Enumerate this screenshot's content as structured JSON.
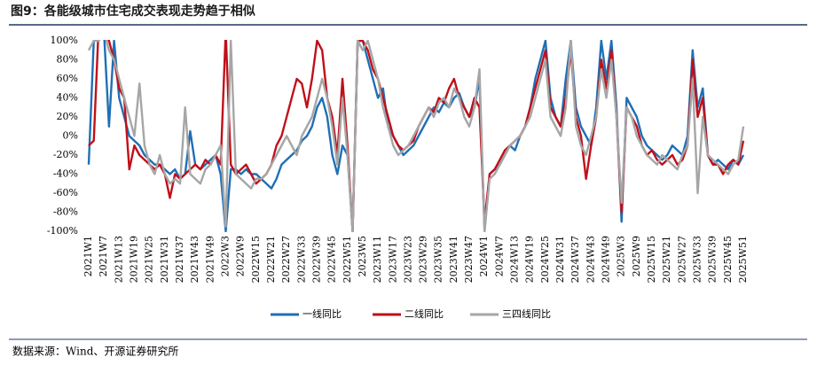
{
  "chart_data": {
    "type": "line",
    "title": "图9：各能级城市住宅成交表现走势趋于相似",
    "source": "数据来源：Wind、开源证券研究所",
    "categories": [
      "2021W1",
      null,
      null,
      "2021W7",
      null,
      null,
      "2021W13",
      null,
      null,
      "2021W19",
      null,
      null,
      "2021W25",
      null,
      null,
      "2021W31",
      null,
      null,
      "2021W37",
      null,
      null,
      "2021W43",
      null,
      null,
      "2021W49",
      null,
      null,
      "2022W3",
      null,
      null,
      "2022W9",
      null,
      null,
      "2022W15",
      null,
      null,
      "2022W21",
      null,
      null,
      "2022W27",
      null,
      null,
      "2022W33",
      null,
      null,
      "2022W39",
      null,
      null,
      "2022W45",
      null,
      null,
      "2022W51",
      null,
      null,
      "2023W5",
      null,
      null,
      "2023W11",
      null,
      null,
      "2023W17",
      null,
      null,
      "2023W23",
      null,
      null,
      "2023W29",
      null,
      null,
      "2023W35",
      null,
      null,
      "2023W41",
      null,
      null,
      "2023W47",
      null,
      null,
      "2024W1",
      null,
      null,
      "2024W7",
      null,
      null,
      "2024W13",
      null,
      null,
      "2024W19",
      null,
      null,
      "2024W25",
      null,
      null,
      "2024W31",
      null,
      null,
      "2024W37",
      null,
      null,
      "2024W43",
      null,
      null,
      "2024W49",
      null,
      null,
      "2025W3",
      null,
      null,
      "2025W9",
      null,
      null,
      "2025W15",
      null,
      null,
      "2025W21",
      null,
      null,
      "2025W27",
      null,
      null,
      "2025W33",
      null,
      null,
      "2025W39",
      null,
      null,
      "2025W45",
      null,
      null,
      "2025W51"
    ],
    "ylim": [
      -100,
      100
    ],
    "yticks": [
      {
        "value": -100,
        "label": "-100%"
      },
      {
        "value": -80,
        "label": "-80%"
      },
      {
        "value": -60,
        "label": "-60%"
      },
      {
        "value": -40,
        "label": "-40%"
      },
      {
        "value": -20,
        "label": "-20%"
      },
      {
        "value": 0,
        "label": "0%"
      },
      {
        "value": 20,
        "label": "20%"
      },
      {
        "value": 40,
        "label": "40%"
      },
      {
        "value": 60,
        "label": "60%"
      },
      {
        "value": 80,
        "label": "80%"
      },
      {
        "value": 100,
        "label": "100%"
      }
    ],
    "grid": false,
    "legend": "bottom",
    "series": [
      {
        "name": "一线同比",
        "color": "#1f6fb5",
        "values": [
          -30,
          100,
          110,
          110,
          10,
          100,
          40,
          20,
          0,
          -5,
          -10,
          -20,
          -25,
          -30,
          -30,
          -35,
          -40,
          -35,
          -45,
          -40,
          5,
          -30,
          -35,
          -30,
          -25,
          -20,
          -40,
          -100,
          -35,
          -35,
          -40,
          -35,
          -40,
          -40,
          -45,
          -50,
          -55,
          -45,
          -30,
          -25,
          -20,
          -15,
          -5,
          0,
          10,
          30,
          40,
          20,
          -20,
          -40,
          -10,
          -20,
          -100,
          100,
          100,
          80,
          60,
          40,
          50,
          10,
          0,
          -10,
          -20,
          -15,
          -10,
          0,
          10,
          20,
          30,
          25,
          35,
          30,
          40,
          45,
          30,
          20,
          30,
          60,
          -100,
          -40,
          -35,
          -30,
          -20,
          -10,
          -15,
          0,
          10,
          30,
          60,
          80,
          100,
          40,
          20,
          10,
          60,
          100,
          30,
          10,
          0,
          -10,
          30,
          100,
          60,
          100,
          30,
          -90,
          40,
          30,
          20,
          0,
          -10,
          -15,
          -20,
          -25,
          -20,
          -10,
          -15,
          -20,
          0,
          90,
          30,
          50,
          -20,
          -30,
          -25,
          -30,
          -35,
          -25,
          -30,
          -20
        ]
      },
      {
        "name": "二线同比",
        "color": "#c0101a",
        "values": [
          -10,
          -5,
          120,
          110,
          100,
          80,
          50,
          40,
          -35,
          -10,
          -20,
          -25,
          -30,
          -35,
          -30,
          -40,
          -65,
          -40,
          -45,
          -40,
          -35,
          -30,
          -35,
          -25,
          -30,
          -20,
          -30,
          110,
          -30,
          -40,
          -35,
          -30,
          -40,
          -50,
          -45,
          -40,
          -30,
          -10,
          0,
          20,
          40,
          60,
          55,
          30,
          60,
          100,
          90,
          40,
          20,
          -20,
          60,
          -10,
          -100,
          100,
          100,
          90,
          70,
          60,
          40,
          20,
          0,
          -10,
          -15,
          -10,
          -5,
          10,
          20,
          30,
          25,
          40,
          35,
          50,
          60,
          40,
          30,
          20,
          40,
          30,
          -90,
          -40,
          -35,
          -25,
          -15,
          -10,
          -5,
          0,
          10,
          30,
          50,
          70,
          90,
          30,
          20,
          10,
          40,
          90,
          20,
          0,
          -45,
          -10,
          20,
          80,
          50,
          90,
          20,
          -80,
          30,
          20,
          10,
          -10,
          -20,
          -15,
          -25,
          -30,
          -25,
          -20,
          -30,
          -25,
          -10,
          80,
          20,
          40,
          -20,
          -30,
          -30,
          -40,
          -30,
          -25,
          -30,
          -5
        ]
      },
      {
        "name": "三四线同比",
        "color": "#a6a6a6",
        "values": [
          90,
          100,
          100,
          110,
          90,
          80,
          60,
          40,
          20,
          0,
          55,
          -10,
          -30,
          -40,
          -20,
          -40,
          -50,
          -45,
          -50,
          30,
          -40,
          -45,
          -50,
          -35,
          -30,
          -20,
          -10,
          -95,
          100,
          -40,
          -45,
          -50,
          -55,
          -45,
          -45,
          -40,
          -30,
          -20,
          -10,
          0,
          -10,
          -20,
          0,
          10,
          20,
          40,
          60,
          40,
          10,
          -30,
          40,
          -20,
          -100,
          100,
          90,
          100,
          80,
          60,
          30,
          10,
          -10,
          -20,
          -15,
          -10,
          0,
          10,
          20,
          30,
          20,
          35,
          40,
          30,
          50,
          40,
          20,
          10,
          30,
          70,
          -100,
          -45,
          -40,
          -30,
          -20,
          -10,
          -5,
          0,
          10,
          20,
          40,
          60,
          80,
          20,
          10,
          0,
          30,
          100,
          10,
          -10,
          -20,
          0,
          20,
          70,
          40,
          80,
          20,
          -70,
          30,
          20,
          0,
          -10,
          -20,
          -25,
          -30,
          -20,
          -25,
          -30,
          -35,
          -20,
          -10,
          60,
          -60,
          20,
          -20,
          -25,
          -30,
          -35,
          -40,
          -30,
          -25,
          10
        ]
      }
    ]
  }
}
